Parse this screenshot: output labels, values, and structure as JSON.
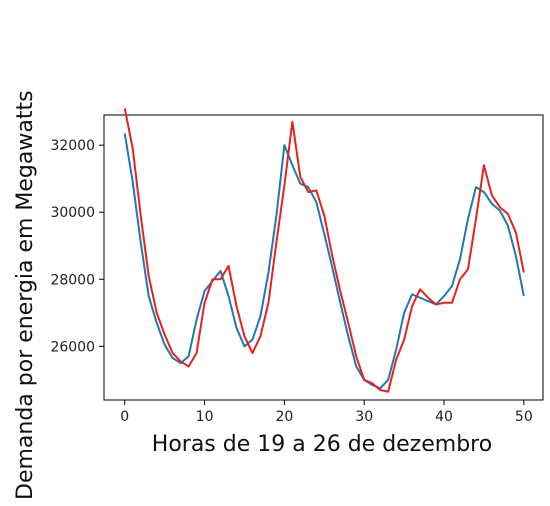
{
  "chart_data": {
    "type": "line",
    "title": "",
    "xlabel": "Horas de 19 a 26 de dezembro",
    "ylabel": "Demanda por energia em Megawatts",
    "xlim": [
      -2.6,
      52.4
    ],
    "ylim": [
      24400,
      32900
    ],
    "xticks": [
      0,
      10,
      20,
      30,
      40,
      50
    ],
    "yticks": [
      26000,
      28000,
      30000,
      32000
    ],
    "grid": false,
    "legend": "none",
    "x": [
      0,
      1,
      2,
      3,
      4,
      5,
      6,
      7,
      8,
      9,
      10,
      11,
      12,
      13,
      14,
      15,
      16,
      17,
      18,
      19,
      20,
      21,
      22,
      23,
      24,
      25,
      26,
      27,
      28,
      29,
      30,
      31,
      32,
      33,
      34,
      35,
      36,
      37,
      38,
      39,
      40,
      41,
      42,
      43,
      44,
      45,
      46,
      47,
      48,
      49,
      50
    ],
    "series": [
      {
        "color": "#1f77b4",
        "values": [
          32350,
          30900,
          29100,
          27500,
          26700,
          26050,
          25650,
          25500,
          25700,
          26800,
          27650,
          27950,
          28250,
          27500,
          26550,
          26000,
          26200,
          26900,
          28200,
          29900,
          32000,
          31400,
          30850,
          30750,
          30300,
          29350,
          28350,
          27300,
          26300,
          25400,
          25000,
          24850,
          24750,
          25000,
          25900,
          27000,
          27550,
          27450,
          27350,
          27250,
          27500,
          27800,
          28600,
          29800,
          30750,
          30600,
          30250,
          30050,
          29600,
          28700,
          27500
        ]
      },
      {
        "color": "#e8211d",
        "values": [
          33100,
          31900,
          29900,
          28100,
          27000,
          26350,
          25800,
          25550,
          25400,
          25800,
          27300,
          28000,
          28000,
          28400,
          27200,
          26300,
          25800,
          26300,
          27300,
          29100,
          30800,
          32700,
          31050,
          30600,
          30650,
          29900,
          28700,
          27650,
          26700,
          25700,
          25000,
          24900,
          24700,
          24650,
          25600,
          26200,
          27200,
          27700,
          27450,
          27250,
          27300,
          27300,
          28000,
          28300,
          29800,
          31400,
          30500,
          30150,
          29950,
          29400,
          28200
        ]
      }
    ]
  }
}
